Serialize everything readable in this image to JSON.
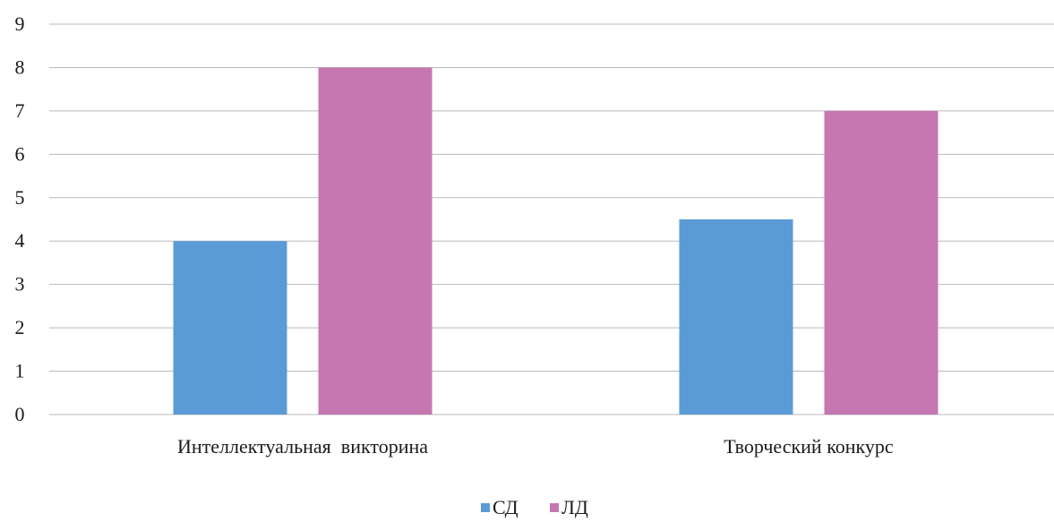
{
  "colors": {
    "series_0": "#5b9bd5",
    "series_1": "#c677b1"
  },
  "chart_data": {
    "type": "bar",
    "categories": [
      "Интеллектуальная  викторина",
      "Творческий конкурс"
    ],
    "series": [
      {
        "name": "СД",
        "values": [
          4,
          4.5
        ]
      },
      {
        "name": "ЛД",
        "values": [
          8,
          7
        ]
      }
    ],
    "ylim": [
      0,
      9
    ],
    "yticks": [
      0,
      1,
      2,
      3,
      4,
      5,
      6,
      7,
      8,
      9
    ],
    "grid": true,
    "legend_position": "bottom"
  }
}
